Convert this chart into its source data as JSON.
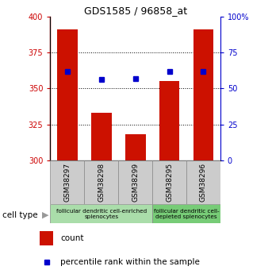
{
  "title": "GDS1585 / 96858_at",
  "samples": [
    "GSM38297",
    "GSM38298",
    "GSM38299",
    "GSM38295",
    "GSM38296"
  ],
  "bar_values": [
    391,
    333,
    318,
    355,
    391
  ],
  "percentile_values": [
    62,
    56,
    57,
    62,
    62
  ],
  "ymin": 300,
  "ymax": 400,
  "yticks": [
    300,
    325,
    350,
    375,
    400
  ],
  "bar_color": "#cc1100",
  "dot_color": "#0000cc",
  "bar_width": 0.6,
  "group1_label": "follicular dendritic cell-enriched\nsplenocytes",
  "group2_label": "follicular dendritic cell-\ndepleted splenocytes",
  "group1_color": "#aaddaa",
  "group2_color": "#77cc77",
  "cell_type_label": "cell type",
  "legend_count_label": "count",
  "legend_percentile_label": "percentile rank within the sample",
  "left_color": "#cc0000",
  "right_color": "#0000cc",
  "tick_area_color": "#cccccc",
  "right_yticks": [
    0,
    25,
    50,
    75,
    100
  ],
  "right_ytick_labels": [
    "0",
    "25",
    "50",
    "75",
    "100%"
  ]
}
